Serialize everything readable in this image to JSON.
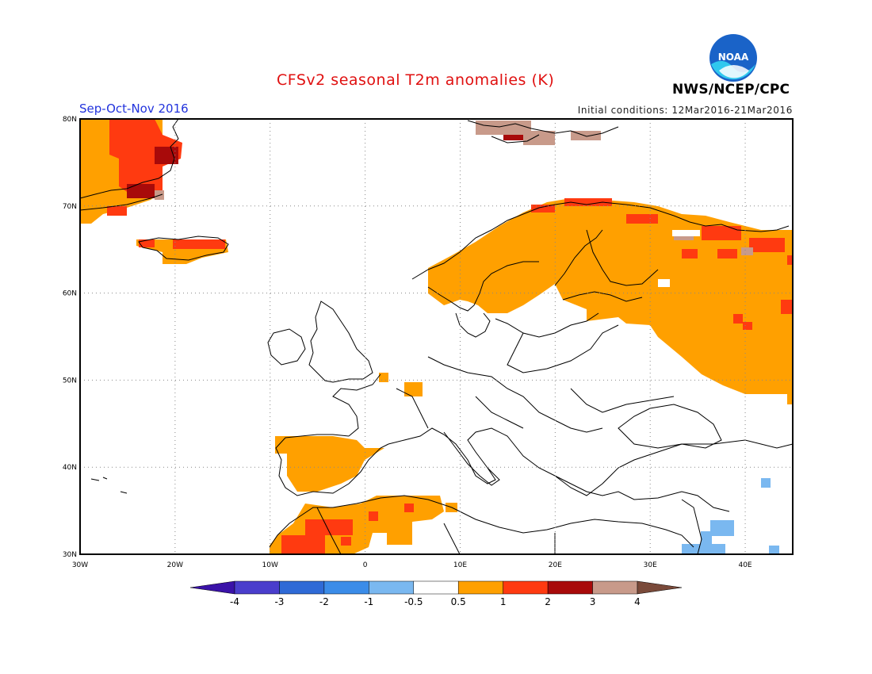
{
  "header": {
    "title": "CFSv2 seasonal T2m anomalies (K)",
    "season": "Sep-Oct-Nov 2016",
    "initial_conditions": "Initial conditions: 12Mar2016-21Mar2016",
    "agency": "NWS/NCEP/CPC",
    "logo_text": "NOAA"
  },
  "map": {
    "lon_labels": [
      "30W",
      "20W",
      "10W",
      "0",
      "10E",
      "20E",
      "30E",
      "40E"
    ],
    "lat_labels": [
      "80N",
      "70N",
      "60N",
      "50N",
      "40N",
      "30N"
    ],
    "lon_range": [
      -30,
      45
    ],
    "lat_range": [
      30,
      80
    ],
    "grid": true
  },
  "colorbar": {
    "labels": [
      "-4",
      "-3",
      "-2",
      "-1",
      "-0.5",
      "0.5",
      "1",
      "2",
      "3",
      "4"
    ],
    "colors": [
      "#3a12a8",
      "#4a3ecc",
      "#2f6ad6",
      "#3b8ce8",
      "#7ab8f0",
      "#ffffff",
      "#ffa000",
      "#ff3a10",
      "#a80a0a",
      "#c89a8a",
      "#7a4a3a"
    ]
  },
  "legend_colors": {
    "warm_0_5_1": "#ffa000",
    "warm_1_2": "#ff3a10",
    "warm_2_3": "#a80a0a",
    "warm_3_4": "#c89a8a",
    "cool_0_5_1": "#7ab8f0"
  }
}
